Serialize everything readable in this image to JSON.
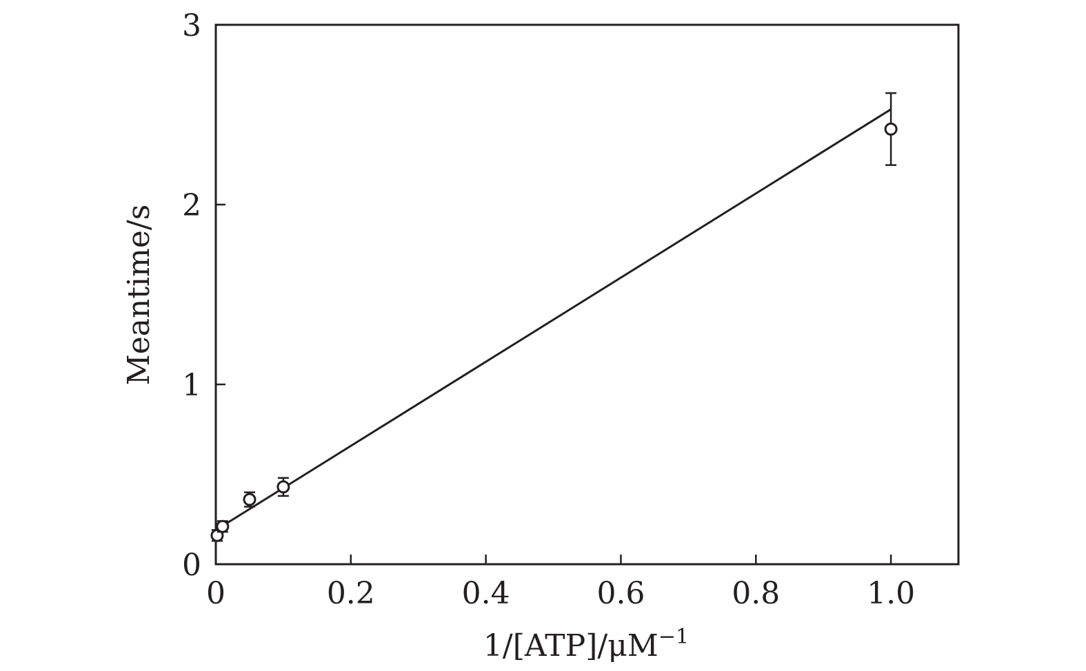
{
  "chart_data": {
    "type": "scatter",
    "title": "",
    "xlabel": "1/[ATP]/μM",
    "xlabel_superscript": "−1",
    "ylabel": "Meantime/s",
    "xlim": [
      0,
      1.1
    ],
    "ylim": [
      0,
      3
    ],
    "xticks": [
      0,
      0.2,
      0.4,
      0.6,
      0.8,
      1.0
    ],
    "xtick_labels": [
      "0",
      "0.2",
      "0.4",
      "0.6",
      "0.8",
      "1.0"
    ],
    "yticks": [
      0,
      1,
      2,
      3
    ],
    "ytick_labels": [
      "0",
      "1",
      "2",
      "3"
    ],
    "grid": false,
    "series": [
      {
        "marker": "open-circle",
        "points": [
          {
            "x": 0.002,
            "y": 0.16,
            "err": 0.03
          },
          {
            "x": 0.01,
            "y": 0.21,
            "err": 0.03
          },
          {
            "x": 0.05,
            "y": 0.36,
            "err": 0.04
          },
          {
            "x": 0.1,
            "y": 0.43,
            "err": 0.05
          },
          {
            "x": 1.0,
            "y": 2.42,
            "err": 0.2
          }
        ]
      }
    ],
    "fit_line": {
      "x": [
        0,
        1.0
      ],
      "y": [
        0.19,
        2.53
      ]
    },
    "colors": {
      "ink": "#231f20",
      "background": "#ffffff"
    }
  }
}
